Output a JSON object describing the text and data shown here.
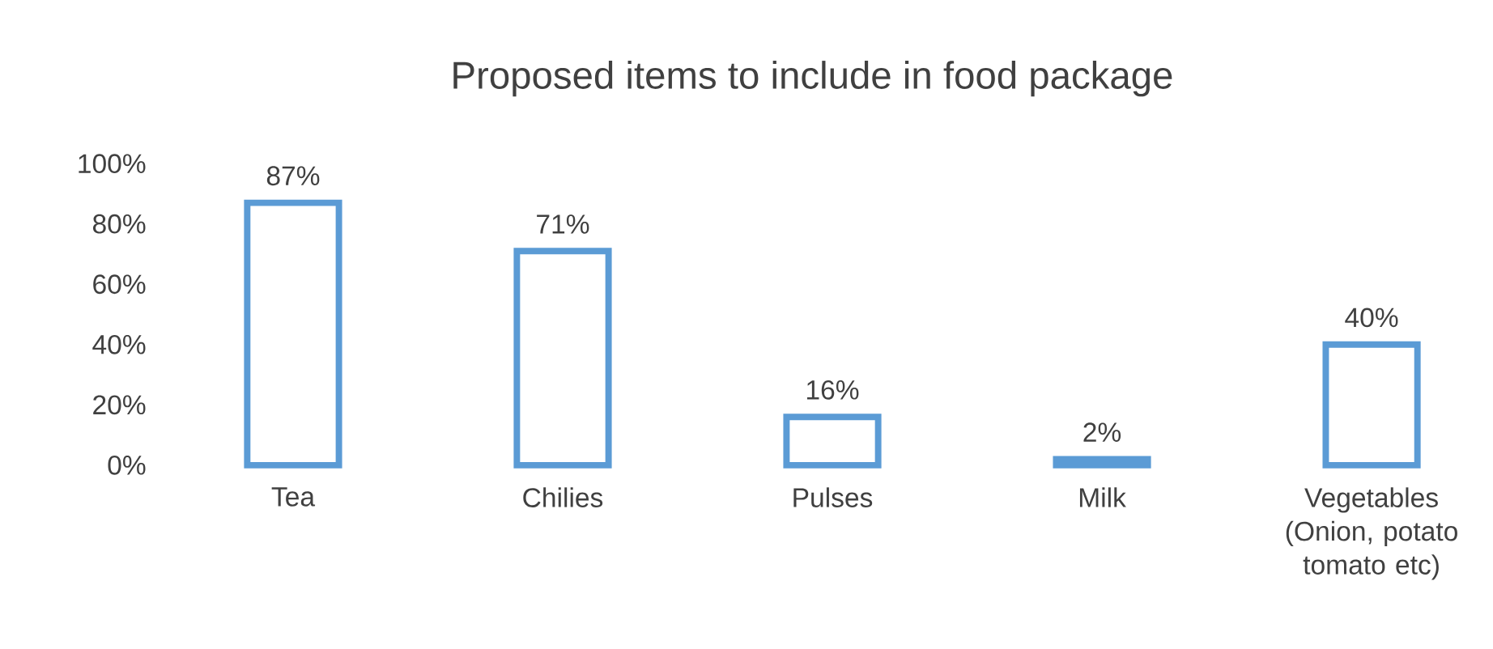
{
  "chart_data": {
    "type": "bar",
    "title": "Proposed items to include in food package",
    "categories": [
      "Tea",
      "Chilies",
      "Pulses",
      "Milk",
      "Vegetables (Onion, potato tomato etc)"
    ],
    "values": [
      87,
      71,
      16,
      2,
      40
    ],
    "value_labels": [
      "87%",
      "71%",
      "16%",
      "2%",
      "40%"
    ],
    "color": "#5b9bd5",
    "ylim": [
      0,
      100
    ],
    "yticks": [
      {
        "value": 0,
        "label": "0%"
      },
      {
        "value": 20,
        "label": "20%"
      },
      {
        "value": 40,
        "label": "40%"
      },
      {
        "value": 60,
        "label": "60%"
      },
      {
        "value": 80,
        "label": "80%"
      },
      {
        "value": 100,
        "label": "100%"
      }
    ]
  }
}
